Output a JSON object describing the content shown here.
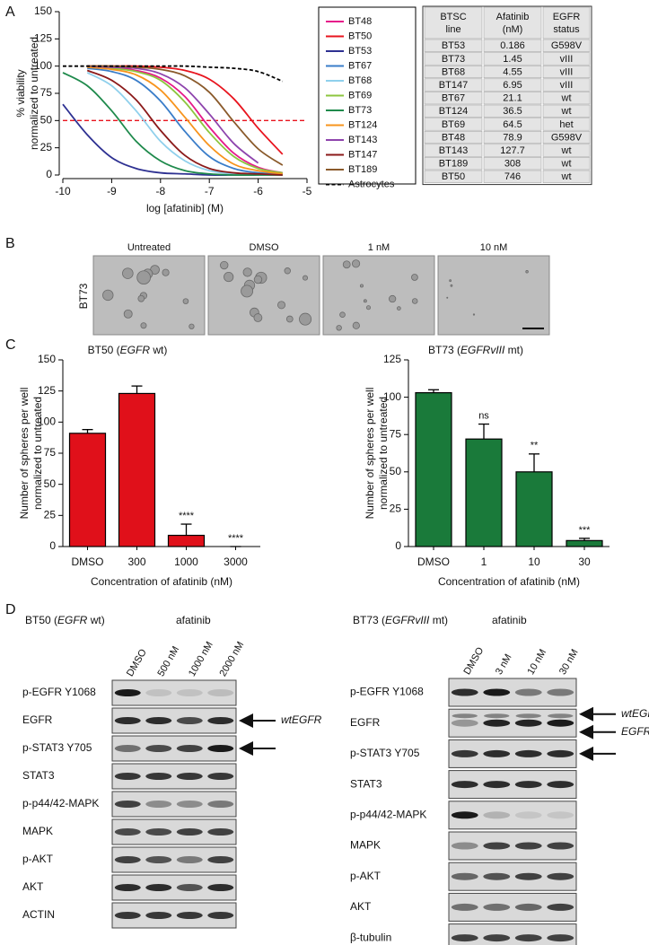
{
  "panel_labels": [
    "A",
    "B",
    "C",
    "D"
  ],
  "chart_data": [
    {
      "type": "line",
      "x": [
        -10,
        -9.5,
        -9,
        -8.5,
        -8,
        -7.5,
        -7,
        -6.5,
        -6,
        -5.5
      ],
      "xlim": [
        -10,
        -5
      ],
      "xticks": [
        -10,
        -9,
        -8,
        -7,
        -6,
        -5
      ],
      "ylim": [
        0,
        150
      ],
      "yticks": [
        0,
        25,
        50,
        75,
        100,
        125,
        150
      ],
      "xlabel": "log [afatinib] (M)",
      "ylabel": [
        "% viability",
        "normalized to untreated"
      ],
      "hline": {
        "value": 50,
        "color": "#e8141e"
      },
      "legend": "right",
      "series": [
        {
          "name": "BT48",
          "color": "#e6198a",
          "values": [
            null,
            100,
            99,
            96,
            89,
            72,
            44,
            20,
            7,
            2
          ]
        },
        {
          "name": "BT50",
          "color": "#e8141e",
          "values": [
            null,
            100,
            100,
            100,
            99,
            96,
            88,
            70,
            43,
            19
          ]
        },
        {
          "name": "BT53",
          "color": "#2e3192",
          "values": [
            65,
            37,
            16,
            6,
            2,
            1,
            0,
            0,
            0,
            0
          ]
        },
        {
          "name": "BT67",
          "color": "#3a7dc9",
          "values": [
            null,
            98,
            95,
            87,
            68,
            40,
            17,
            6,
            2,
            1
          ]
        },
        {
          "name": "BT68",
          "color": "#8fd0ec",
          "values": [
            null,
            94,
            82,
            59,
            31,
            13,
            4,
            1,
            0,
            0
          ]
        },
        {
          "name": "BT69",
          "color": "#8dc63f",
          "values": [
            null,
            100,
            98,
            95,
            87,
            67,
            39,
            17,
            6,
            2
          ]
        },
        {
          "name": "BT73",
          "color": "#1f8a4c",
          "values": [
            94,
            82,
            59,
            31,
            13,
            4,
            1,
            0,
            0,
            0
          ]
        },
        {
          "name": "BT124",
          "color": "#f7941d",
          "values": [
            null,
            99,
            97,
            92,
            78,
            53,
            27,
            10,
            4,
            1
          ]
        },
        {
          "name": "BT143",
          "color": "#8e44ad",
          "values": [
            null,
            100,
            99,
            98,
            93,
            80,
            56,
            29,
            11,
            null
          ]
        },
        {
          "name": "BT147",
          "color": "#8b1a1a",
          "values": [
            null,
            96,
            87,
            69,
            41,
            18,
            6,
            2,
            1,
            0
          ]
        },
        {
          "name": "BT189",
          "color": "#8a5a2b",
          "values": [
            null,
            100,
            100,
            99,
            97,
            91,
            76,
            49,
            24,
            9
          ]
        },
        {
          "name": "Astrocytes",
          "color": "#000000",
          "dash": true,
          "values": [
            100,
            100,
            100,
            100,
            100,
            100,
            99,
            98,
            95,
            86
          ]
        }
      ]
    },
    {
      "type": "bar",
      "title_parts": [
        {
          "text": "BT50 ("
        },
        {
          "text": "EGFR",
          "italic": true
        },
        {
          "text": " wt)"
        }
      ],
      "categories": [
        "DMSO",
        "300",
        "1000",
        "3000"
      ],
      "values": [
        91,
        123,
        9,
        0
      ],
      "errors": [
        3,
        6,
        9,
        0
      ],
      "annotations": [
        null,
        null,
        "****",
        "****"
      ],
      "color": "#e0101a",
      "ylim": [
        0,
        150
      ],
      "yticks": [
        0,
        25,
        50,
        75,
        100,
        125,
        150
      ],
      "xlabel": "Concentration of afatinib (nM)",
      "ylabel": [
        "Number of spheres per well",
        "normalized to untreated"
      ]
    },
    {
      "type": "bar",
      "title_parts": [
        {
          "text": "BT73 ("
        },
        {
          "text": "EGFRvIII",
          "italic": true
        },
        {
          "text": " mt)"
        }
      ],
      "categories": [
        "DMSO",
        "1",
        "10",
        "30"
      ],
      "values": [
        103,
        72,
        50,
        4
      ],
      "errors": [
        2,
        10,
        12,
        1.5
      ],
      "annotations": [
        null,
        "ns",
        "**",
        "***"
      ],
      "color": "#1a7a3a",
      "ylim": [
        0,
        125
      ],
      "yticks": [
        0,
        25,
        50,
        75,
        100,
        125
      ],
      "xlabel": "Concentration of afatinib (nM)",
      "ylabel": [
        "Number of spheres per well",
        "normalized to untreated"
      ]
    }
  ],
  "table": {
    "header": [
      [
        "BTSC",
        "line"
      ],
      [
        "Afatinib",
        "(nM)"
      ],
      [
        "EGFR",
        "status"
      ]
    ],
    "rows": [
      [
        "BT53",
        0.186,
        "G598V"
      ],
      [
        "BT73",
        1.45,
        "vIII"
      ],
      [
        "BT68",
        4.55,
        "vIII"
      ],
      [
        "BT147",
        6.95,
        "vIII"
      ],
      [
        "BT67",
        21.1,
        "wt"
      ],
      [
        "BT124",
        36.5,
        "wt"
      ],
      [
        "BT69",
        64.5,
        "het"
      ],
      [
        "BT48",
        78.9,
        "G598V"
      ],
      [
        "BT143",
        127.7,
        "wt"
      ],
      [
        "BT189",
        308,
        "wt"
      ],
      [
        "BT50",
        746,
        "wt"
      ]
    ]
  },
  "panel_b": {
    "row_label": "BT73",
    "conditions": [
      "Untreated",
      "DMSO",
      "1 nM",
      "10 nM"
    ]
  },
  "panel_d": [
    {
      "title_parts": [
        {
          "text": "BT50 ("
        },
        {
          "text": "EGFR",
          "italic": true
        },
        {
          "text": " wt)"
        }
      ],
      "treatment": "afatinib",
      "lanes": [
        "DMSO",
        "500 nM",
        "1000 nM",
        "2000 nM"
      ],
      "rows": [
        {
          "label": "p-EGFR Y1068"
        },
        {
          "label": "EGFR",
          "arrow_labels": [
            "wtEGFR"
          ]
        },
        {
          "label": "p-STAT3 Y705",
          "arrow": true
        },
        {
          "label": "STAT3"
        },
        {
          "label": "p-p44/42-MAPK"
        },
        {
          "label": "MAPK"
        },
        {
          "label": "p-AKT"
        },
        {
          "label": "AKT"
        },
        {
          "label": "ACTIN"
        }
      ]
    },
    {
      "title_parts": [
        {
          "text": "BT73 ("
        },
        {
          "text": "EGFRvIII",
          "italic": true
        },
        {
          "text": " mt)"
        }
      ],
      "treatment": "afatinib",
      "lanes": [
        "DMSO",
        "3 nM",
        "10 nM",
        "30 nM"
      ],
      "rows": [
        {
          "label": "p-EGFR Y1068"
        },
        {
          "label": "EGFR",
          "arrow_labels": [
            "wtEGFR",
            "EGFRvIII"
          ]
        },
        {
          "label": "p-STAT3 Y705",
          "arrow": true
        },
        {
          "label": "STAT3"
        },
        {
          "label": "p-p44/42-MAPK"
        },
        {
          "label": "MAPK"
        },
        {
          "label": "p-AKT"
        },
        {
          "label": "AKT"
        },
        {
          "label": "β-tubulin"
        }
      ]
    }
  ]
}
